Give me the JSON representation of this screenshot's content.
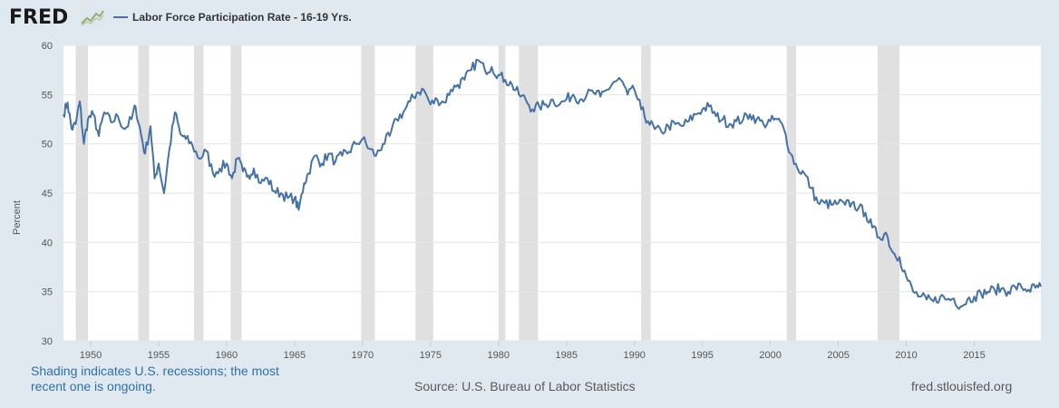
{
  "header": {
    "logo_text": "FRED",
    "logo_icon": "chart-line-icon"
  },
  "footer": {
    "recession_note": "Shading indicates U.S. recessions; the most recent one is ongoing.",
    "source": "Source: U.S. Bureau of Labor Statistics",
    "site": "fred.stlouisfed.org"
  },
  "colors": {
    "line": "#4572a7",
    "recession": "#e0e0e0",
    "background": "#e1e9f0",
    "plot": "#ffffff",
    "grid": "#e6e6e6"
  },
  "chart_data": {
    "type": "line",
    "ylabel": "Percent",
    "xlim": [
      1948,
      2019.9
    ],
    "ylim": [
      30,
      60
    ],
    "y_ticks": [
      30,
      35,
      40,
      45,
      50,
      55,
      60
    ],
    "x_ticks": [
      1950,
      1955,
      1960,
      1965,
      1970,
      1975,
      1980,
      1985,
      1990,
      1995,
      2000,
      2005,
      2010,
      2015
    ],
    "grid": "horizontal",
    "legend_position": "top-left",
    "recessions": [
      [
        1948.9,
        1949.8
      ],
      [
        1953.5,
        1954.3
      ],
      [
        1957.6,
        1958.3
      ],
      [
        1960.3,
        1961.1
      ],
      [
        1969.9,
        1970.9
      ],
      [
        1973.9,
        1975.2
      ],
      [
        1980.0,
        1980.5
      ],
      [
        1981.5,
        1982.9
      ],
      [
        1990.5,
        1991.2
      ],
      [
        2001.2,
        2001.9
      ],
      [
        2007.9,
        2009.5
      ]
    ],
    "series": [
      {
        "name": "Labor Force Participation Rate - 16-19 Yrs.",
        "x": [
          1948.0,
          1948.3,
          1948.6,
          1948.9,
          1949.2,
          1949.5,
          1949.8,
          1950.2,
          1950.6,
          1951.0,
          1951.5,
          1952.0,
          1952.5,
          1953.0,
          1953.3,
          1953.7,
          1954.0,
          1954.4,
          1954.7,
          1955.0,
          1955.4,
          1955.8,
          1956.2,
          1956.6,
          1957.0,
          1957.5,
          1958.0,
          1958.5,
          1959.0,
          1959.5,
          1960.0,
          1960.4,
          1960.8,
          1961.2,
          1961.6,
          1962.0,
          1962.5,
          1963.0,
          1963.5,
          1964.0,
          1964.5,
          1965.0,
          1965.3,
          1965.7,
          1966.0,
          1966.5,
          1967.0,
          1967.5,
          1968.0,
          1968.5,
          1969.0,
          1969.5,
          1970.0,
          1970.5,
          1971.0,
          1971.5,
          1972.0,
          1972.5,
          1973.0,
          1973.5,
          1974.0,
          1974.5,
          1975.0,
          1975.5,
          1976.0,
          1976.5,
          1977.0,
          1977.5,
          1978.0,
          1978.5,
          1979.0,
          1979.5,
          1980.0,
          1980.5,
          1981.0,
          1981.5,
          1982.0,
          1982.5,
          1983.0,
          1983.5,
          1984.0,
          1984.5,
          1985.0,
          1985.5,
          1986.0,
          1986.5,
          1987.0,
          1987.5,
          1988.0,
          1988.5,
          1989.0,
          1989.5,
          1990.0,
          1990.5,
          1991.0,
          1991.5,
          1992.0,
          1992.5,
          1993.0,
          1993.5,
          1994.0,
          1994.5,
          1995.0,
          1995.5,
          1996.0,
          1996.5,
          1997.0,
          1997.5,
          1998.0,
          1998.5,
          1999.0,
          1999.5,
          2000.0,
          2000.5,
          2001.0,
          2001.5,
          2002.0,
          2002.5,
          2003.0,
          2003.5,
          2004.0,
          2004.5,
          2005.0,
          2005.5,
          2006.0,
          2006.5,
          2007.0,
          2007.5,
          2008.0,
          2008.5,
          2009.0,
          2009.5,
          2010.0,
          2010.5,
          2011.0,
          2011.5,
          2012.0,
          2012.5,
          2013.0,
          2013.5,
          2014.0,
          2014.5,
          2015.0,
          2015.5,
          2016.0,
          2016.5,
          2017.0,
          2017.5,
          2018.0,
          2018.5,
          2019.0,
          2019.5,
          2019.9
        ],
        "y": [
          53.0,
          54.2,
          51.5,
          52.0,
          54.3,
          50.0,
          52.5,
          53.0,
          50.8,
          53.2,
          52.2,
          52.8,
          51.5,
          52.5,
          53.8,
          51.0,
          49.0,
          51.8,
          46.5,
          48.0,
          45.0,
          49.5,
          53.2,
          51.0,
          50.5,
          49.8,
          48.5,
          49.3,
          47.0,
          47.5,
          48.0,
          46.5,
          48.5,
          47.2,
          46.8,
          47.5,
          46.0,
          46.5,
          45.2,
          45.0,
          44.5,
          44.5,
          43.3,
          46.0,
          47.0,
          48.8,
          48.0,
          49.0,
          48.2,
          48.8,
          49.2,
          50.0,
          50.5,
          49.5,
          48.8,
          50.0,
          50.8,
          52.5,
          53.2,
          54.3,
          55.2,
          55.5,
          54.0,
          54.5,
          54.2,
          55.5,
          56.0,
          56.5,
          57.5,
          58.5,
          57.5,
          57.8,
          57.0,
          56.5,
          56.0,
          55.0,
          54.5,
          53.5,
          53.8,
          54.0,
          54.5,
          54.0,
          54.5,
          55.0,
          54.5,
          55.0,
          55.2,
          54.8,
          55.5,
          56.3,
          56.5,
          55.0,
          55.5,
          53.5,
          52.3,
          51.5,
          51.2,
          51.8,
          52.0,
          51.8,
          52.3,
          53.0,
          53.5,
          53.8,
          52.8,
          52.5,
          52.0,
          52.3,
          52.5,
          53.0,
          52.5,
          52.0,
          52.3,
          52.5,
          51.5,
          49.0,
          47.5,
          47.0,
          45.5,
          44.0,
          44.0,
          43.8,
          44.0,
          43.8,
          44.0,
          43.5,
          43.0,
          41.5,
          40.5,
          41.0,
          39.0,
          38.5,
          36.5,
          35.0,
          34.5,
          34.2,
          34.0,
          34.5,
          34.2,
          34.3,
          33.5,
          34.2,
          34.5,
          34.8,
          35.0,
          35.2,
          35.3,
          35.0,
          35.5,
          35.4,
          35.2,
          35.4,
          35.5
        ]
      }
    ]
  }
}
